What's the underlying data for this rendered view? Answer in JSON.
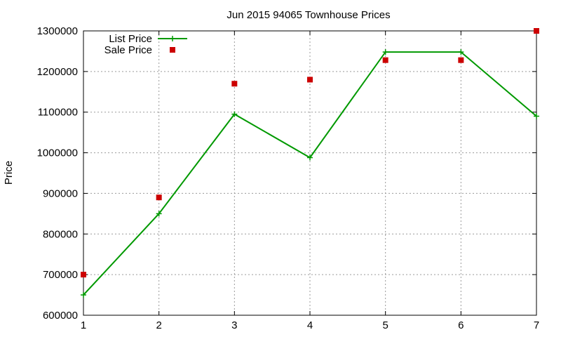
{
  "chart_data": {
    "type": "line",
    "title": "Jun 2015 94065 Townhouse Prices",
    "xlabel": "",
    "ylabel": "Price",
    "x": [
      1,
      2,
      3,
      4,
      5,
      6,
      7
    ],
    "xlim": [
      1,
      7
    ],
    "ylim": [
      600000,
      1300000
    ],
    "yticks": [
      600000,
      700000,
      800000,
      900000,
      1000000,
      1100000,
      1200000,
      1300000
    ],
    "grid": true,
    "legend_position": "top-left",
    "series": [
      {
        "name": "List Price",
        "style": "line+cross",
        "color": "#009900",
        "values": [
          650000,
          850000,
          1095000,
          988000,
          1248000,
          1248000,
          1090000
        ]
      },
      {
        "name": "Sale Price",
        "style": "square",
        "color": "#cc0000",
        "values": [
          700000,
          890000,
          1170000,
          1180000,
          1228000,
          1228000,
          1300000
        ]
      }
    ]
  }
}
